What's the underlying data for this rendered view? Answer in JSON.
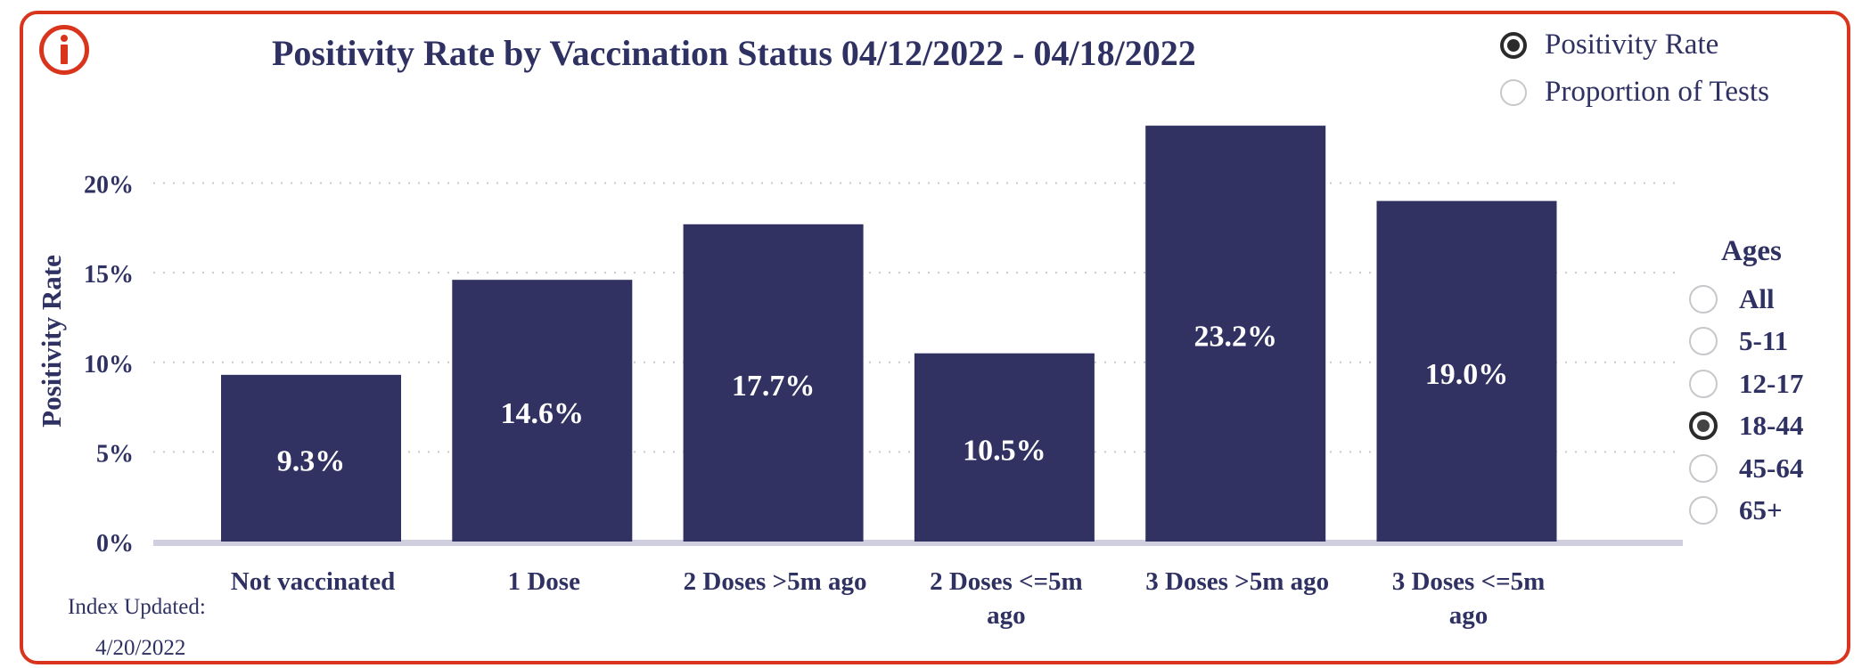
{
  "header": {
    "title": "Positivity Rate by Vaccination Status 04/12/2022 - 04/18/2022"
  },
  "metric_toggle": {
    "options": [
      {
        "label": "Positivity Rate",
        "selected": true
      },
      {
        "label": "Proportion of Tests",
        "selected": false
      }
    ]
  },
  "age_filter": {
    "heading": "Ages",
    "options": [
      {
        "label": "All",
        "selected": false
      },
      {
        "label": "5-11",
        "selected": false
      },
      {
        "label": "12-17",
        "selected": false
      },
      {
        "label": "18-44",
        "selected": true
      },
      {
        "label": "45-64",
        "selected": false
      },
      {
        "label": "65+",
        "selected": false
      }
    ]
  },
  "footer": {
    "index_label": "Index Updated:",
    "index_date": "4/20/2022"
  },
  "icons": {
    "info": "info-icon"
  },
  "colors": {
    "bar": "#313262",
    "accent": "#d9341c",
    "text": "#2f3163"
  },
  "chart_data": {
    "type": "bar",
    "title": "Positivity Rate by Vaccination Status 04/12/2022 - 04/18/2022",
    "xlabel": "",
    "ylabel": "Positivity Rate",
    "categories": [
      [
        "Not vaccinated"
      ],
      [
        "1 Dose"
      ],
      [
        "2 Doses >5m ago"
      ],
      [
        "2 Doses <=5m",
        "ago"
      ],
      [
        "3 Doses >5m ago"
      ],
      [
        "3 Doses <=5m",
        "ago"
      ]
    ],
    "values": [
      9.3,
      14.6,
      17.7,
      10.5,
      23.2,
      19.0
    ],
    "data_labels": [
      "9.3%",
      "14.6%",
      "17.7%",
      "10.5%",
      "23.2%",
      "19.0%"
    ],
    "yticks": [
      0,
      5,
      10,
      15,
      20
    ],
    "ytick_labels": [
      "0%",
      "5%",
      "10%",
      "15%",
      "20%"
    ],
    "ylim": [
      0,
      24
    ],
    "grid": true,
    "legend": "none"
  }
}
